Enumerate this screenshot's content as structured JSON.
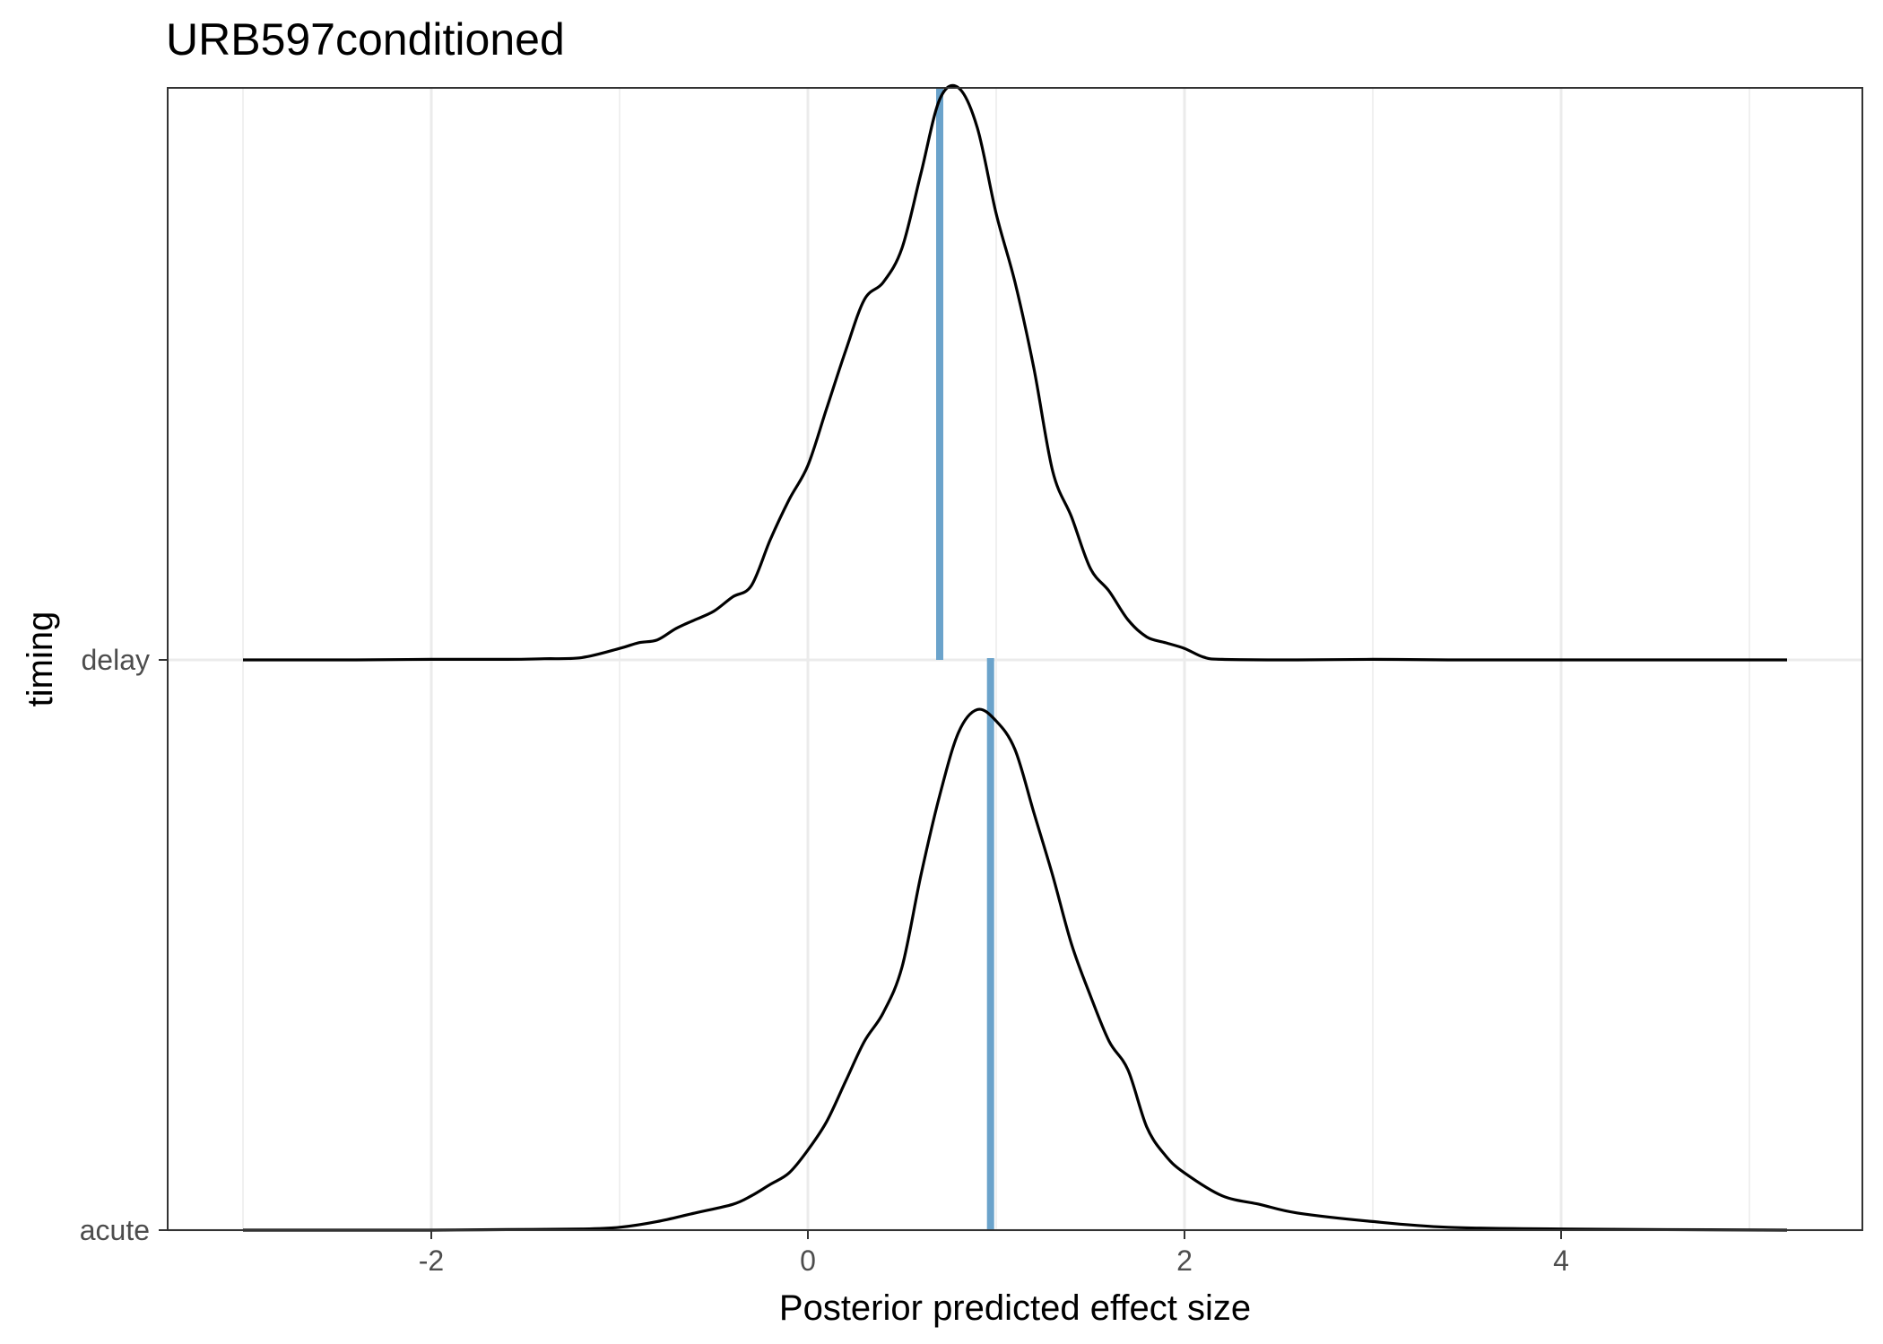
{
  "chart_data": {
    "type": "density_ridges",
    "title": "URB597conditioned",
    "xlabel": "Posterior predicted effect size",
    "ylabel": "timing",
    "xlim": [
      -3.4,
      5.6
    ],
    "x_ticks": [
      -2,
      0,
      2,
      4
    ],
    "x_tick_labels": [
      "-2",
      "0",
      "2",
      "4"
    ],
    "categories": [
      "acute",
      "delay"
    ],
    "grid": true,
    "median_line_color": "#6BA3CB",
    "curve_color": "#000000",
    "series": [
      {
        "category": "delay",
        "median": 0.7,
        "density": [
          [
            -3.0,
            0.0
          ],
          [
            -2.4,
            0.0
          ],
          [
            -2.0,
            0.001
          ],
          [
            -1.6,
            0.001
          ],
          [
            -1.4,
            0.002
          ],
          [
            -1.2,
            0.004
          ],
          [
            -1.0,
            0.02
          ],
          [
            -0.9,
            0.03
          ],
          [
            -0.8,
            0.035
          ],
          [
            -0.7,
            0.055
          ],
          [
            -0.6,
            0.07
          ],
          [
            -0.5,
            0.085
          ],
          [
            -0.4,
            0.11
          ],
          [
            -0.3,
            0.13
          ],
          [
            -0.2,
            0.21
          ],
          [
            -0.1,
            0.28
          ],
          [
            0.0,
            0.34
          ],
          [
            0.1,
            0.44
          ],
          [
            0.2,
            0.54
          ],
          [
            0.3,
            0.63
          ],
          [
            0.4,
            0.66
          ],
          [
            0.5,
            0.72
          ],
          [
            0.6,
            0.85
          ],
          [
            0.7,
            0.98
          ],
          [
            0.8,
            1.0
          ],
          [
            0.9,
            0.93
          ],
          [
            1.0,
            0.78
          ],
          [
            1.1,
            0.66
          ],
          [
            1.2,
            0.51
          ],
          [
            1.3,
            0.33
          ],
          [
            1.4,
            0.25
          ],
          [
            1.5,
            0.16
          ],
          [
            1.6,
            0.12
          ],
          [
            1.7,
            0.07
          ],
          [
            1.8,
            0.04
          ],
          [
            1.9,
            0.03
          ],
          [
            2.0,
            0.02
          ],
          [
            2.1,
            0.005
          ],
          [
            2.2,
            0.001
          ],
          [
            2.6,
            0.0
          ],
          [
            3.0,
            0.001
          ],
          [
            3.4,
            0.0
          ],
          [
            4.0,
            0.0
          ],
          [
            5.2,
            0.0
          ]
        ]
      },
      {
        "category": "acute",
        "median": 0.97,
        "density": [
          [
            -3.0,
            0.0
          ],
          [
            -2.4,
            0.0
          ],
          [
            -2.0,
            0.0
          ],
          [
            -1.6,
            0.001
          ],
          [
            -1.2,
            0.002
          ],
          [
            -1.0,
            0.005
          ],
          [
            -0.8,
            0.015
          ],
          [
            -0.6,
            0.03
          ],
          [
            -0.4,
            0.045
          ],
          [
            -0.3,
            0.06
          ],
          [
            -0.2,
            0.08
          ],
          [
            -0.1,
            0.1
          ],
          [
            0.0,
            0.14
          ],
          [
            0.1,
            0.19
          ],
          [
            0.2,
            0.26
          ],
          [
            0.3,
            0.33
          ],
          [
            0.4,
            0.38
          ],
          [
            0.5,
            0.46
          ],
          [
            0.6,
            0.62
          ],
          [
            0.7,
            0.76
          ],
          [
            0.8,
            0.87
          ],
          [
            0.9,
            0.91
          ],
          [
            1.0,
            0.89
          ],
          [
            1.1,
            0.84
          ],
          [
            1.2,
            0.73
          ],
          [
            1.3,
            0.62
          ],
          [
            1.4,
            0.5
          ],
          [
            1.5,
            0.41
          ],
          [
            1.6,
            0.33
          ],
          [
            1.7,
            0.28
          ],
          [
            1.8,
            0.18
          ],
          [
            1.9,
            0.13
          ],
          [
            2.0,
            0.1
          ],
          [
            2.2,
            0.06
          ],
          [
            2.4,
            0.045
          ],
          [
            2.6,
            0.03
          ],
          [
            3.0,
            0.015
          ],
          [
            3.4,
            0.005
          ],
          [
            4.0,
            0.002
          ],
          [
            5.2,
            0.0
          ]
        ]
      }
    ]
  }
}
